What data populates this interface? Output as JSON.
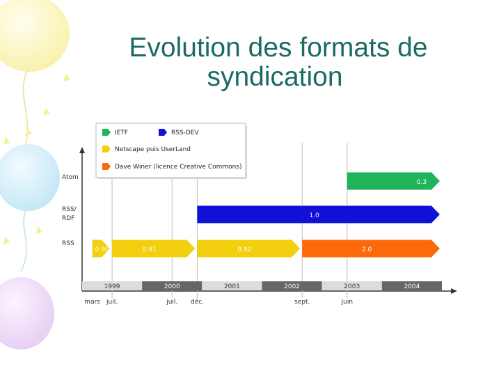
{
  "slide": {
    "title_line1": "Evolution des formats de",
    "title_line2": "syndication"
  },
  "chart_data": {
    "type": "timeline",
    "legend": [
      {
        "label": "IETF",
        "color": "#1fb35a"
      },
      {
        "label": "RSS-DEV",
        "color": "#1010d8"
      },
      {
        "label": "Netscape puis UserLand",
        "color": "#f2cf0f"
      },
      {
        "label": "Dave Winer (licence Creative Commons)",
        "color": "#fa6a0a"
      }
    ],
    "rows": [
      "Atom",
      "RSS/ RDF",
      "RSS"
    ],
    "years": [
      {
        "label": "1999",
        "start": 1999.0,
        "end": 2000.0,
        "shade": "light"
      },
      {
        "label": "2000",
        "start": 2000.0,
        "end": 2001.0,
        "shade": "dark"
      },
      {
        "label": "2001",
        "start": 2001.0,
        "end": 2002.0,
        "shade": "light"
      },
      {
        "label": "2002",
        "start": 2002.0,
        "end": 2003.0,
        "shade": "dark"
      },
      {
        "label": "2003",
        "start": 2003.0,
        "end": 2004.0,
        "shade": "light"
      },
      {
        "label": "2004",
        "start": 2004.0,
        "end": 2005.0,
        "shade": "dark"
      }
    ],
    "date_markers": [
      {
        "label": "mars",
        "date": 1999.17
      },
      {
        "label": "juil.",
        "date": 1999.5
      },
      {
        "label": "juil.",
        "date": 2000.5
      },
      {
        "label": "déc.",
        "date": 2000.92
      },
      {
        "label": "sept.",
        "date": 2002.67
      },
      {
        "label": "juin",
        "date": 2003.42
      }
    ],
    "bars": [
      {
        "row": "Atom",
        "label": "0.3",
        "start": 2003.42,
        "end": 2005.0,
        "color": "#1fb35a"
      },
      {
        "row": "RSS/ RDF",
        "label": "1.0",
        "start": 2000.92,
        "end": 2005.0,
        "color": "#1010d8"
      },
      {
        "row": "RSS",
        "label": "0.90",
        "start": 1999.17,
        "end": 1999.5,
        "color": "#f2cf0f"
      },
      {
        "row": "RSS",
        "label": "0.91",
        "start": 1999.5,
        "end": 2000.92,
        "color": "#f2cf0f"
      },
      {
        "row": "RSS",
        "label": "0.92",
        "start": 2000.92,
        "end": 2002.67,
        "color": "#f2cf0f"
      },
      {
        "row": "RSS",
        "label": "2.0",
        "start": 2002.67,
        "end": 2005.0,
        "color": "#fa6a0a"
      }
    ]
  }
}
